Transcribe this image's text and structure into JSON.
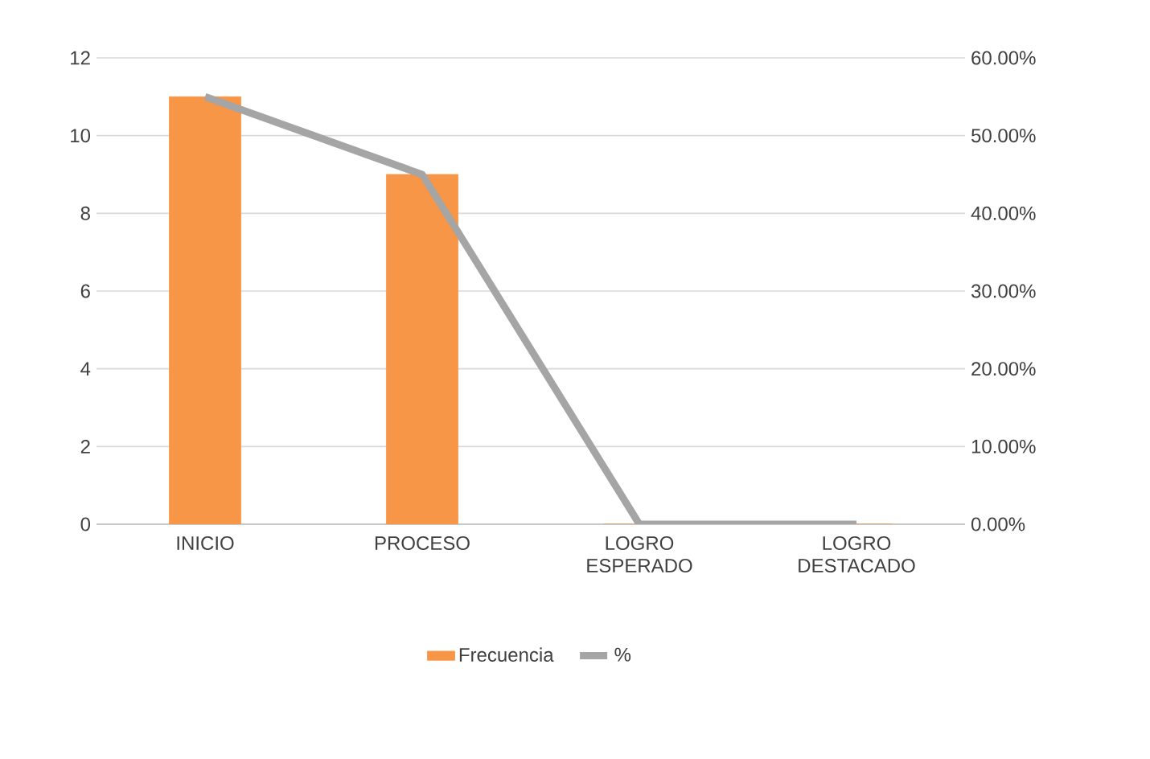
{
  "chart_data": {
    "type": "bar",
    "categories": [
      "INICIO",
      "PROCESO",
      "LOGRO ESPERADO",
      "LOGRO DESTACADO"
    ],
    "series": [
      {
        "name": "Frecuencia",
        "color": "#f79646",
        "values": [
          11,
          9,
          0,
          0
        ]
      },
      {
        "name": "%",
        "type": "line",
        "axis": "y2",
        "color": "#a5a5a5",
        "values": [
          55,
          45,
          0,
          0
        ]
      }
    ],
    "ylim": [
      0,
      12
    ],
    "yticks": [
      0,
      2,
      4,
      6,
      8,
      10,
      12
    ],
    "y2lim": [
      0,
      60
    ],
    "y2ticks": [
      {
        "value": 0,
        "label": "0.00%"
      },
      {
        "value": 10,
        "label": "10.00%"
      },
      {
        "value": 20,
        "label": "20.00%"
      },
      {
        "value": 30,
        "label": "30.00%"
      },
      {
        "value": 40,
        "label": "40.00%"
      },
      {
        "value": 50,
        "label": "50.00%"
      },
      {
        "value": 60,
        "label": "60.00%"
      }
    ],
    "grid": "y",
    "legend": "bottom",
    "marker": "none",
    "line_style": "solid"
  }
}
